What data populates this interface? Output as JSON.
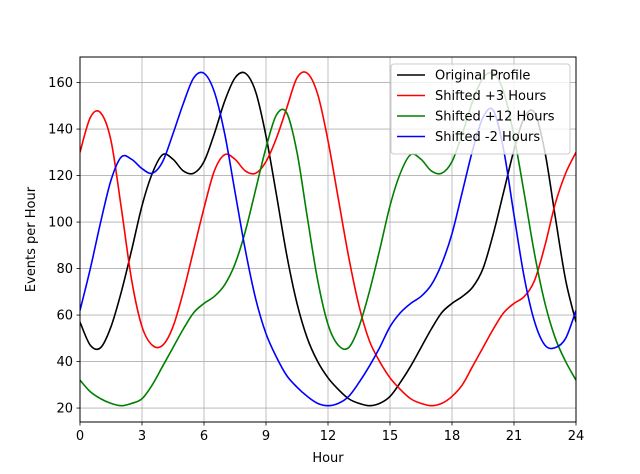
{
  "chart_data": {
    "type": "line",
    "title": "",
    "xlabel": "Hour",
    "ylabel": "Events per Hour",
    "xlim": [
      0,
      24
    ],
    "ylim": [
      14,
      171
    ],
    "xticks": [
      0,
      3,
      6,
      9,
      12,
      15,
      18,
      21,
      24
    ],
    "yticks": [
      20,
      40,
      60,
      80,
      100,
      120,
      140,
      160
    ],
    "grid": true,
    "legend_position": "top-right",
    "x": [
      0,
      0.5,
      1,
      1.5,
      2,
      2.5,
      3,
      3.5,
      4,
      4.5,
      5,
      5.5,
      6,
      6.5,
      7,
      7.5,
      8,
      8.5,
      9,
      9.5,
      10,
      10.5,
      11,
      11.5,
      12,
      12.5,
      13,
      13.5,
      14,
      14.5,
      15,
      15.5,
      16,
      16.5,
      17,
      17.5,
      18,
      18.5,
      19,
      19.5,
      20,
      20.5,
      21,
      21.5,
      22,
      22.5,
      23,
      23.5,
      24
    ],
    "series": [
      {
        "name": "Original Profile",
        "color": "#000000",
        "values": [
          57,
          47,
          46,
          55,
          70,
          88,
          107,
          121,
          129,
          127,
          122,
          121,
          126,
          138,
          152,
          162,
          164,
          156,
          137,
          112,
          86,
          65,
          50,
          40,
          33,
          28,
          24,
          22,
          21,
          22,
          25,
          31,
          38,
          46,
          54,
          61,
          65,
          68,
          72,
          80,
          95,
          113,
          131,
          145,
          147,
          130,
          102,
          75,
          57
        ]
      },
      {
        "name": "Shifted +3 Hours",
        "color": "#ff0000",
        "values": [
          130,
          145,
          147,
          135,
          106,
          75,
          55,
          47,
          47,
          55,
          70,
          88,
          106,
          122,
          129,
          127,
          122,
          121,
          126,
          136,
          149,
          162,
          164,
          155,
          135,
          110,
          85,
          64,
          49,
          40,
          33,
          28,
          24,
          22,
          21,
          22,
          25,
          30,
          38,
          46,
          54,
          61,
          65,
          68,
          75,
          90,
          108,
          121,
          130
        ]
      },
      {
        "name": "Shifted +12 Hours",
        "color": "#008000",
        "values": [
          32,
          27,
          24,
          22,
          21,
          22,
          24,
          30,
          38,
          46,
          54,
          61,
          65,
          68,
          73,
          82,
          96,
          114,
          132,
          146,
          147,
          130,
          102,
          75,
          56,
          47,
          46,
          55,
          70,
          88,
          107,
          121,
          129,
          127,
          122,
          121,
          126,
          138,
          152,
          162,
          164,
          156,
          137,
          112,
          86,
          65,
          50,
          40,
          32
        ]
      },
      {
        "name": "Shifted -2 Hours",
        "color": "#0000ff",
        "values": [
          62,
          80,
          100,
          118,
          128,
          127,
          123,
          121,
          126,
          138,
          151,
          162,
          164,
          156,
          138,
          113,
          88,
          67,
          52,
          42,
          34,
          29,
          25,
          22,
          21,
          22,
          25,
          31,
          38,
          46,
          55,
          61,
          65,
          68,
          73,
          82,
          95,
          113,
          131,
          145,
          148,
          131,
          103,
          76,
          57,
          47,
          46,
          50,
          62
        ]
      }
    ]
  }
}
